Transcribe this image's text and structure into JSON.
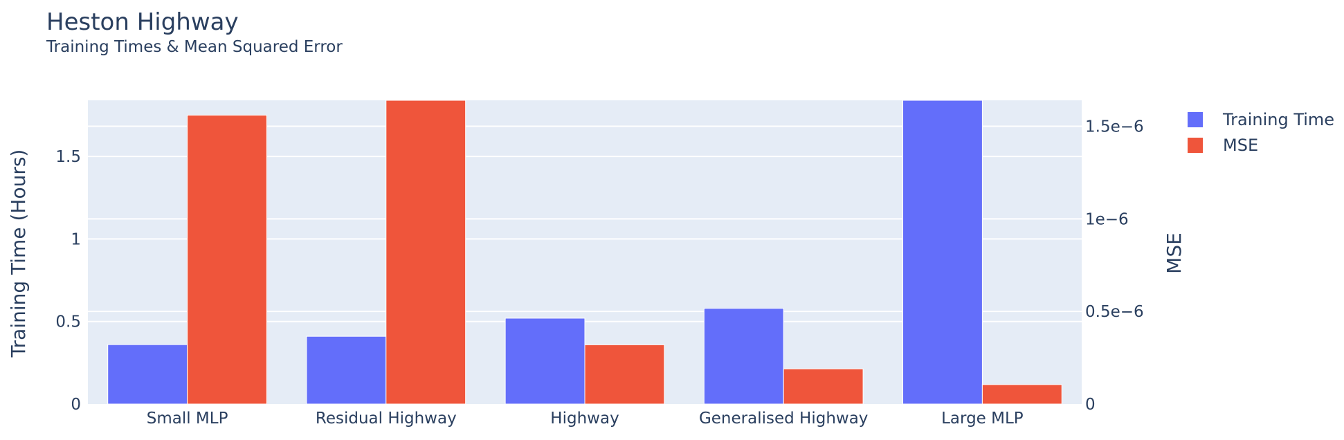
{
  "colors": {
    "training_time": "#636efa",
    "mse": "#ef553b",
    "plot_bg": "#e5ecf6",
    "grid": "#ffffff",
    "text": "#2a3f5f"
  },
  "chart_data": {
    "type": "bar",
    "title": "Heston Highway",
    "subtitle": "Training Times & Mean Squared Error",
    "categories": [
      "Small MLP",
      "Residual Highway",
      "Highway",
      "Generalised Highway",
      "Large MLP"
    ],
    "series": [
      {
        "name": "Training Time",
        "axis": "left",
        "values": [
          0.36,
          0.41,
          0.52,
          0.58,
          1.84
        ]
      },
      {
        "name": "MSE",
        "axis": "right",
        "values": [
          1.56e-06,
          1.64e-06,
          3.2e-07,
          1.9e-07,
          1.05e-07
        ]
      }
    ],
    "ylabel": "Training Time (Hours)",
    "y2label": "MSE",
    "ylim": [
      0,
      1.84
    ],
    "y2lim": [
      0,
      1.64e-06
    ],
    "yticks": [
      {
        "value": 0,
        "label": "0"
      },
      {
        "value": 0.5,
        "label": "0.5"
      },
      {
        "value": 1,
        "label": "1"
      },
      {
        "value": 1.5,
        "label": "1.5"
      }
    ],
    "y2ticks": [
      {
        "value": 0,
        "label": "0"
      },
      {
        "value": 5e-07,
        "label": "0.5e−6"
      },
      {
        "value": 1e-06,
        "label": "1e−6"
      },
      {
        "value": 1.5e-06,
        "label": "1.5e−6"
      }
    ],
    "grid": true,
    "legend": "top-right"
  }
}
